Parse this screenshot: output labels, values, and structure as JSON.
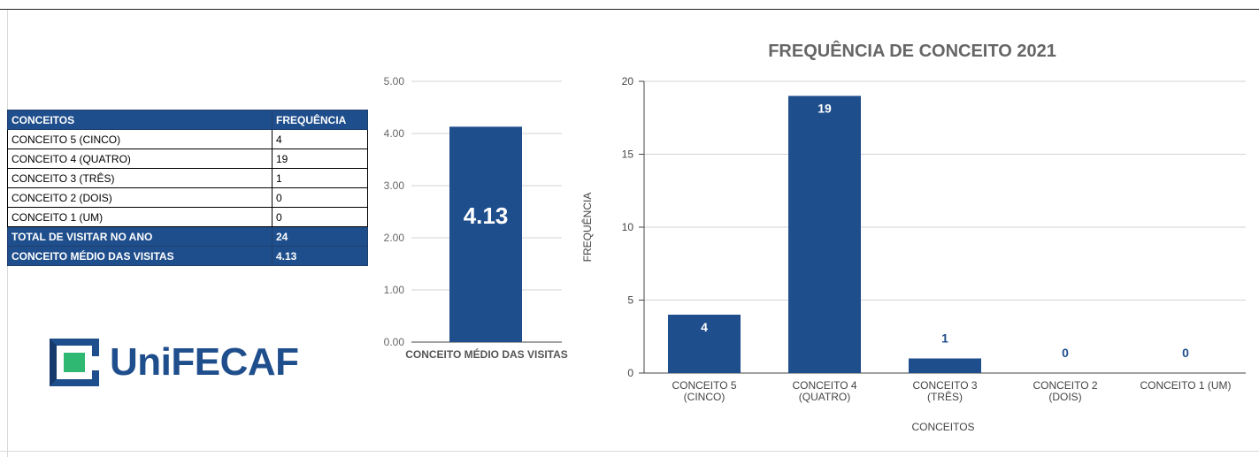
{
  "summary_table": {
    "header": [
      "CONCEITOS",
      "FREQUÊNCIA"
    ],
    "rows": [
      [
        "CONCEITO 5 (CINCO)",
        "4"
      ],
      [
        "CONCEITO 4 (QUATRO)",
        "19"
      ],
      [
        "CONCEITO 3 (TRÊS)",
        "1"
      ],
      [
        "CONCEITO 2 (DOIS)",
        "0"
      ],
      [
        "CONCEITO 1 (UM)",
        "0"
      ]
    ],
    "totals": [
      [
        "TOTAL DE VISITAR NO ANO",
        "24"
      ],
      [
        "CONCEITO MÉDIO DAS VISITAS",
        "4.13"
      ]
    ]
  },
  "logo": {
    "text": "UniFECAF",
    "color": "#1f4e8c",
    "accent": "#2eb872"
  },
  "chart_data": [
    {
      "type": "bar",
      "title": "",
      "categories": [
        "CONCEITO MÉDIO DAS VISITAS"
      ],
      "values": [
        4.13
      ],
      "data_labels": [
        "4.13"
      ],
      "yticks": [
        "0.00",
        "1.00",
        "2.00",
        "3.00",
        "4.00",
        "5.00"
      ],
      "ylim": [
        0,
        5
      ],
      "xlabel": "",
      "ylabel": "",
      "grid": true,
      "bar_color": "#1f4e8c"
    },
    {
      "type": "bar",
      "title": "FREQUÊNCIA DE CONCEITO 2021",
      "categories": [
        [
          "CONCEITO 5",
          "(CINCO)"
        ],
        [
          "CONCEITO 4",
          "(QUATRO)"
        ],
        [
          "CONCEITO 3",
          "(TRÊS)"
        ],
        [
          "CONCEITO 2",
          "(DOIS)"
        ],
        [
          "CONCEITO 1 (UM)"
        ]
      ],
      "values": [
        4,
        19,
        1,
        0,
        0
      ],
      "data_labels": [
        "4",
        "19",
        "1",
        "0",
        "0"
      ],
      "yticks": [
        "0",
        "5",
        "10",
        "15",
        "20"
      ],
      "ylim": [
        0,
        20
      ],
      "xlabel": "CONCEITOS",
      "ylabel": "FREQUÊNCIA",
      "grid": true,
      "bar_color": "#1f4e8c"
    }
  ]
}
